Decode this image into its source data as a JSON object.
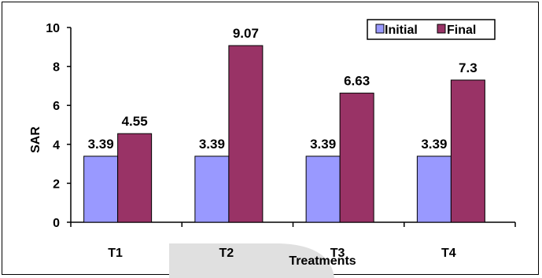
{
  "chart_data": {
    "type": "bar",
    "title": "",
    "xlabel": "Treatments",
    "ylabel": "SAR",
    "categories": [
      "T1",
      "T2",
      "T3",
      "T4"
    ],
    "ylim": [
      0,
      10
    ],
    "yticks": [
      0,
      2,
      4,
      6,
      8,
      10
    ],
    "grid": false,
    "legend_position": "top-right",
    "series": [
      {
        "name": "Initial",
        "color": "#9999ff",
        "values": [
          3.39,
          3.39,
          3.39,
          3.39
        ],
        "labels": [
          "3.39",
          "3.39",
          "3.39",
          "3.39"
        ]
      },
      {
        "name": "Final",
        "color": "#993366",
        "values": [
          4.55,
          9.07,
          6.63,
          7.3
        ],
        "labels": [
          "4.55",
          "9.07",
          "6.63",
          "7.3"
        ]
      }
    ]
  }
}
